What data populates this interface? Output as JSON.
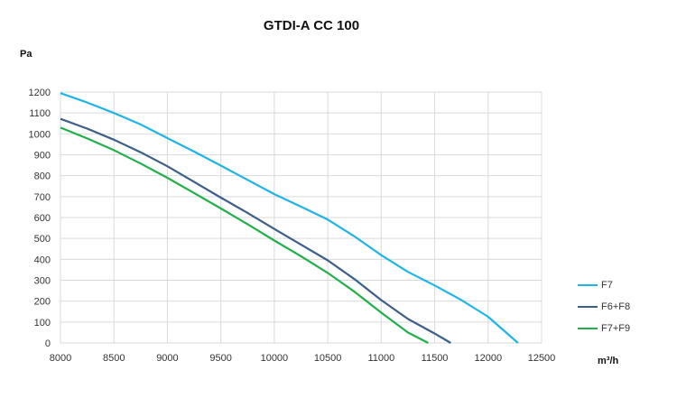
{
  "chart_data": {
    "type": "line",
    "title": "GTDI-A CC 100",
    "ylabel": "Pa",
    "xlabel": "m³/h",
    "xlim": [
      8000,
      12500
    ],
    "ylim": [
      0,
      1200
    ],
    "xticks": [
      8000,
      8500,
      9000,
      9500,
      10000,
      10500,
      11000,
      11500,
      12000,
      12500
    ],
    "yticks": [
      0,
      100,
      200,
      300,
      400,
      500,
      600,
      700,
      800,
      900,
      1000,
      1100,
      1200
    ],
    "grid": true,
    "legend_position": "right",
    "series": [
      {
        "name": "F7",
        "color": "#1fb4e6",
        "x": [
          8000,
          8250,
          8500,
          8750,
          9000,
          9250,
          9500,
          9750,
          10000,
          10250,
          10500,
          10750,
          11000,
          11250,
          11500,
          11750,
          12000,
          12280
        ],
        "y": [
          1195,
          1150,
          1100,
          1045,
          980,
          915,
          848,
          780,
          712,
          652,
          590,
          510,
          420,
          340,
          275,
          205,
          125,
          0
        ]
      },
      {
        "name": "F6+F8",
        "color": "#3b5f8a",
        "x": [
          8000,
          8250,
          8500,
          8750,
          9000,
          9250,
          9500,
          9750,
          10000,
          10250,
          10500,
          10750,
          11000,
          11250,
          11500,
          11650
        ],
        "y": [
          1072,
          1025,
          972,
          912,
          845,
          770,
          695,
          622,
          545,
          470,
          395,
          305,
          205,
          115,
          45,
          0
        ]
      },
      {
        "name": "F7+F9",
        "color": "#20b04a",
        "x": [
          8000,
          8250,
          8500,
          8750,
          9000,
          9250,
          9500,
          9750,
          10000,
          10250,
          10500,
          10750,
          11000,
          11250,
          11440
        ],
        "y": [
          1030,
          978,
          922,
          858,
          790,
          717,
          643,
          568,
          490,
          415,
          335,
          245,
          145,
          50,
          0
        ]
      }
    ]
  }
}
